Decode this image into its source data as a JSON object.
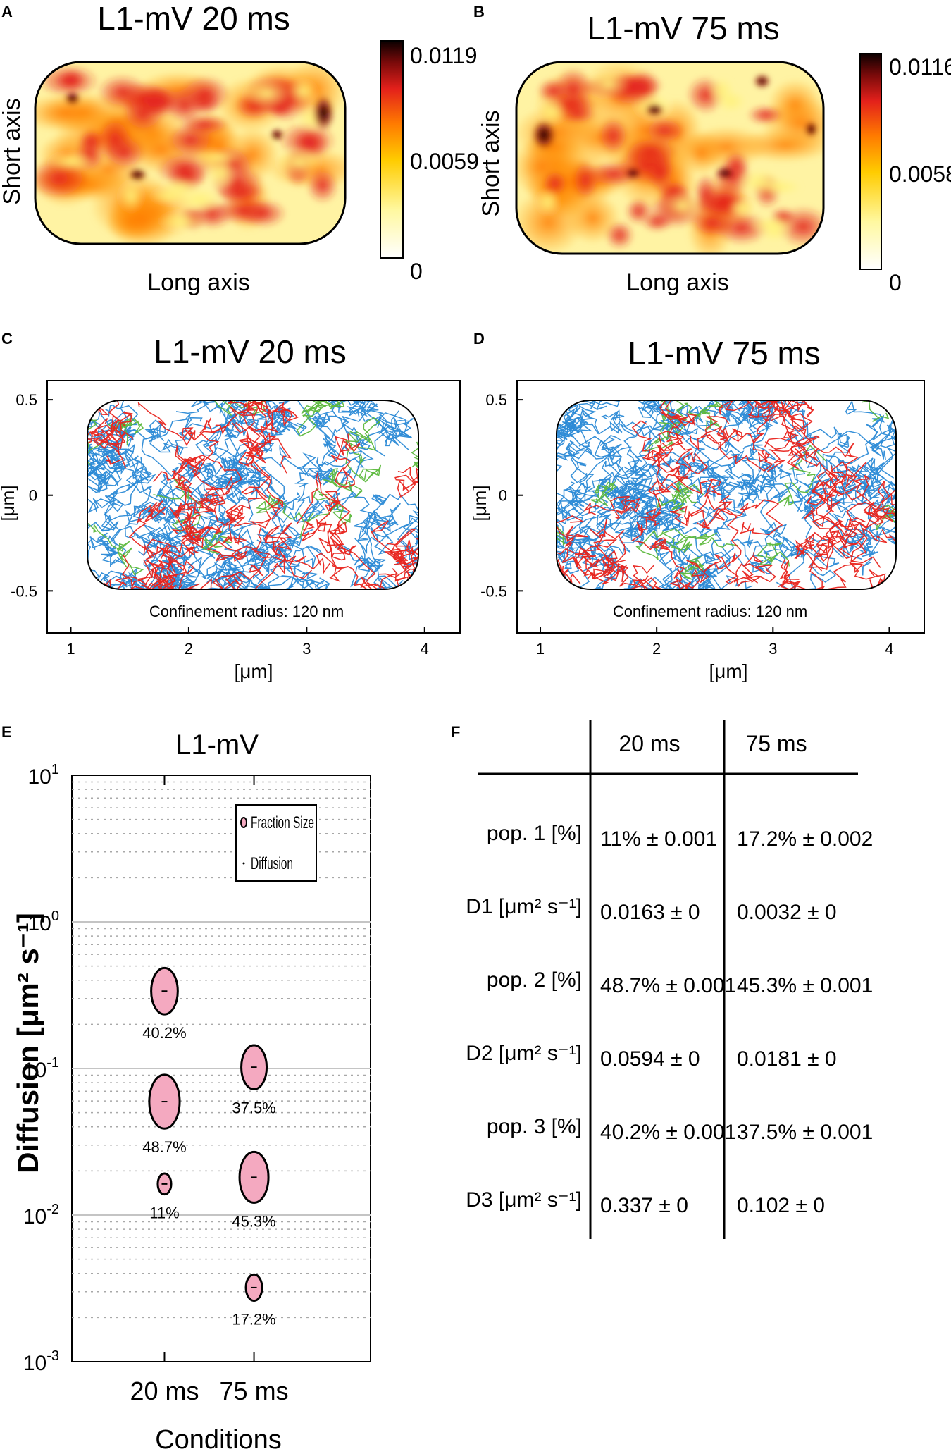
{
  "colors": {
    "blue": "#2b8ad6",
    "red": "#e8231c",
    "green": "#5cb83c",
    "pink": "#f4a9c0",
    "grid": "#a8a8a8"
  },
  "panels": {
    "A": {
      "letter": "A",
      "title": "L1-mV 20 ms",
      "ylabel": "Short axis",
      "xlabel": "Long axis",
      "cb_max": "0.0119",
      "cb_mid": "0.0059",
      "cb_min": "0"
    },
    "B": {
      "letter": "B",
      "title": "L1-mV 75 ms",
      "ylabel": "Short axis",
      "xlabel": "Long axis",
      "cb_max": "0.0116",
      "cb_mid": "0.0058",
      "cb_min": "0"
    },
    "C": {
      "letter": "C",
      "title": "L1-mV 20 ms",
      "note": "Confinement radius: 120 nm",
      "xlabel": "[μm]",
      "ylabel": "[μm]"
    },
    "D": {
      "letter": "D",
      "title": "L1-mV 75 ms",
      "note": "Confinement radius: 120 nm",
      "xlabel": "[μm]",
      "ylabel": "[μm]"
    },
    "E": {
      "letter": "E",
      "title": "L1-mV",
      "ylabel": "Diffusion [μm² s⁻¹]",
      "xlabel": "Conditions",
      "legend_fraction": "Fraction Size",
      "legend_diffusion": "Diffusion"
    },
    "F": {
      "letter": "F"
    }
  },
  "chart_data": [
    {
      "type": "heatmap",
      "panel": "A",
      "title": "L1-mV 20 ms",
      "xlabel": "Long axis",
      "ylabel": "Short axis",
      "colorbar": {
        "min": 0,
        "mid": 0.0059,
        "max": 0.0119
      }
    },
    {
      "type": "heatmap",
      "panel": "B",
      "title": "L1-mV 75 ms",
      "xlabel": "Long axis",
      "ylabel": "Short axis",
      "colorbar": {
        "min": 0,
        "mid": 0.0058,
        "max": 0.0116
      }
    },
    {
      "type": "line",
      "panel": "C",
      "title": "L1-mV 20 ms",
      "xlabel": "[μm]",
      "ylabel": "[μm]",
      "xlim": [
        0.8,
        4.3
      ],
      "ylim": [
        -0.72,
        0.6
      ],
      "xticks": [
        "1",
        "2",
        "3",
        "4"
      ],
      "yticks": [
        "0.5",
        "0",
        "-0.5"
      ],
      "series": [
        "blue",
        "red",
        "green"
      ],
      "annotation": "Confinement radius: 120 nm"
    },
    {
      "type": "line",
      "panel": "D",
      "title": "L1-mV 75 ms",
      "xlabel": "[μm]",
      "ylabel": "[μm]",
      "xlim": [
        0.8,
        4.3
      ],
      "ylim": [
        -0.72,
        0.6
      ],
      "xticks": [
        "1",
        "2",
        "3",
        "4"
      ],
      "yticks": [
        "0.5",
        "0",
        "-0.5"
      ],
      "series": [
        "blue",
        "red",
        "green"
      ],
      "annotation": "Confinement radius: 120 nm"
    },
    {
      "type": "scatter",
      "panel": "E",
      "title": "L1-mV",
      "xlabel": "Conditions",
      "ylabel": "Diffusion [μm² s⁻¹]",
      "yscale": "log",
      "ylim": [
        0.001,
        10
      ],
      "categories": [
        "20 ms",
        "75 ms"
      ],
      "yticks": [
        {
          "base": "10",
          "exp": "1"
        },
        {
          "base": "10",
          "exp": "0"
        },
        {
          "base": "10",
          "exp": "-1"
        },
        {
          "base": "10",
          "exp": "-2"
        },
        {
          "base": "10",
          "exp": "-3"
        }
      ],
      "points": [
        {
          "cat": 0,
          "D": 0.337,
          "fraction": 40.2,
          "label": "40.2%"
        },
        {
          "cat": 0,
          "D": 0.0594,
          "fraction": 48.7,
          "label": "48.7%"
        },
        {
          "cat": 0,
          "D": 0.0163,
          "fraction": 11,
          "label": "11%"
        },
        {
          "cat": 1,
          "D": 0.102,
          "fraction": 37.5,
          "label": "37.5%"
        },
        {
          "cat": 1,
          "D": 0.0181,
          "fraction": 45.3,
          "label": "45.3%"
        },
        {
          "cat": 1,
          "D": 0.0032,
          "fraction": 17.2,
          "label": "17.2%"
        }
      ]
    },
    {
      "type": "table",
      "panel": "F",
      "columns": [
        "20 ms",
        "75 ms"
      ],
      "rows": [
        {
          "label": "pop. 1 [%]",
          "v1": "11% ± 0.001",
          "v2": "17.2% ± 0.002"
        },
        {
          "label": "D1 [μm² s⁻¹]",
          "v1": "0.0163 ± 0",
          "v2": "0.0032 ± 0"
        },
        {
          "label": "pop. 2 [%]",
          "v1": "48.7% ± 0.001",
          "v2": "45.3% ± 0.001"
        },
        {
          "label": "D2 [μm² s⁻¹]",
          "v1": "0.0594 ± 0",
          "v2": "0.0181 ± 0"
        },
        {
          "label": "pop. 3 [%]",
          "v1": "40.2% ± 0.001",
          "v2": "37.5% ± 0.001"
        },
        {
          "label": "D3 [μm² s⁻¹]",
          "v1": "0.337 ± 0",
          "v2": "0.102 ± 0"
        }
      ]
    }
  ]
}
